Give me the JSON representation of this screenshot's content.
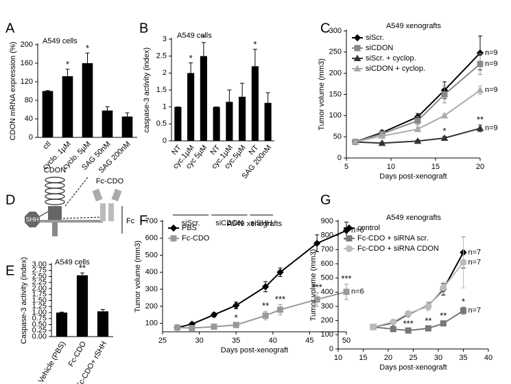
{
  "chart_data": [
    {
      "type": "bar",
      "panel": "A",
      "title": "A549 cells",
      "ylabel": "CDON mRNA expression (%)",
      "categories": [
        "ctl",
        "cyclo. 1µM",
        "cyclo. 5µM",
        "SAG 50nM",
        "SAG 200nM"
      ],
      "values": [
        100,
        132,
        160,
        58,
        45
      ],
      "errors": [
        1,
        15,
        22,
        8,
        8
      ],
      "significance": [
        null,
        "*",
        "*",
        null,
        null
      ],
      "color": "#000000",
      "ylim": [
        0,
        200
      ],
      "yticks": [
        0,
        40,
        80,
        120,
        160,
        200
      ]
    },
    {
      "type": "bar",
      "panel": "B",
      "title": "A549 cells",
      "ylabel": "caspase-3 activity (index)",
      "categories": [
        "NT",
        "cyc.1µM",
        "cyc 5µM",
        "NT",
        "cyc.1µM",
        "cyc.5µM",
        "NT",
        "SAG 200nM"
      ],
      "values": [
        1,
        2,
        2.5,
        1,
        1.15,
        1.3,
        2.2,
        1.12
      ],
      "errors": [
        0,
        0.3,
        0.4,
        0,
        0.35,
        0.4,
        0.5,
        0.3
      ],
      "significance": [
        null,
        "*",
        "*",
        null,
        null,
        null,
        "*",
        null
      ],
      "groups": [
        {
          "label": "siScr.",
          "count": 3
        },
        {
          "label": "siCDON",
          "count": 3
        },
        {
          "label": "siSHH",
          "count": 2
        }
      ],
      "color": "#000000",
      "ylim": [
        0,
        3
      ],
      "yticks": [
        0,
        0.5,
        1,
        1.5,
        2,
        2.5,
        3
      ]
    },
    {
      "type": "line",
      "panel": "C",
      "title": "A549 xenografts",
      "xlabel": "Days post-xenograft",
      "ylabel": "Tumor volume (mm3)",
      "x": [
        6,
        9,
        13,
        16,
        20
      ],
      "xlim": [
        5,
        20
      ],
      "xticks": [
        5,
        10,
        15,
        20
      ],
      "ylim": [
        0,
        300
      ],
      "yticks": [
        0,
        50,
        100,
        150,
        200,
        250,
        300
      ],
      "legend": "upper left",
      "series": [
        {
          "name": "siScr.",
          "color": "#000000",
          "marker": "diamond",
          "values": [
            38,
            60,
            97,
            160,
            248
          ],
          "errors": [
            3,
            5,
            8,
            20,
            40
          ],
          "n_label": "n=9"
        },
        {
          "name": "siCDON",
          "color": "#888888",
          "marker": "square",
          "values": [
            38,
            57,
            88,
            150,
            222
          ],
          "errors": [
            3,
            5,
            10,
            20,
            25
          ],
          "n_label": "n=9"
        },
        {
          "name": "siScr. + cyclop.",
          "color": "#333333",
          "marker": "triangle",
          "values": [
            38,
            35,
            40,
            47,
            70
          ],
          "errors": [
            3,
            3,
            3,
            4,
            8
          ],
          "n_label": "n=9"
        },
        {
          "name": "siCDON + cyclop.",
          "color": "#aaaaaa",
          "marker": "triangle",
          "values": [
            38,
            52,
            68,
            100,
            160
          ],
          "errors": [
            3,
            4,
            5,
            4,
            10
          ],
          "n_label": "n=9"
        }
      ],
      "annotations": [
        {
          "x": 16,
          "text": "*"
        },
        {
          "x": 20,
          "text": "**"
        }
      ]
    },
    {
      "type": "bar",
      "panel": "E",
      "title": "A549 cells",
      "ylabel": "Caspase-3 activity (index)",
      "categories": [
        "Vehicle (PBS)",
        "Fc-CDO",
        "Fc-CDO+ rSHH"
      ],
      "values": [
        1.0,
        2.55,
        1.05
      ],
      "errors": [
        0.02,
        0.1,
        0.08
      ],
      "significance": [
        null,
        "**",
        null
      ],
      "color": "#000000",
      "ylim": [
        0,
        3
      ],
      "yticks": [
        {
          "value": 0,
          "label": "0.00"
        },
        {
          "value": 0.25,
          "label": "0.25"
        },
        {
          "value": 0.5,
          "label": "0.50"
        },
        {
          "value": 0.75,
          "label": "0.75"
        },
        {
          "value": 1,
          "label": "1.00"
        },
        {
          "value": 1.25,
          "label": "1.25"
        },
        {
          "value": 1.5,
          "label": "1.50"
        },
        {
          "value": 1.75,
          "label": "1.75"
        },
        {
          "value": 2,
          "label": "2.00"
        },
        {
          "value": 2.25,
          "label": "2.25"
        },
        {
          "value": 2.5,
          "label": "2.50"
        },
        {
          "value": 2.75,
          "label": "2.75"
        },
        {
          "value": 3,
          "label": "3.00"
        }
      ]
    },
    {
      "type": "line",
      "panel": "F",
      "title": "A549 xenografts",
      "xlabel": "Days post-xenograft",
      "ylabel": "Tumor volume (mm3)",
      "x": [
        27,
        29,
        32,
        35,
        39,
        41,
        46,
        50
      ],
      "xlim": [
        25,
        50
      ],
      "xticks": [
        25,
        30,
        35,
        40,
        45,
        50
      ],
      "ylim": [
        50,
        700
      ],
      "yticks": [
        100,
        200,
        300,
        400,
        500,
        600,
        700
      ],
      "legend": "upper left",
      "series": [
        {
          "name": "PBS",
          "color": "#000000",
          "marker": "diamond",
          "values": [
            75,
            95,
            150,
            205,
            315,
            400,
            570,
            645
          ],
          "errors": [
            8,
            10,
            12,
            20,
            30,
            25,
            50,
            50
          ],
          "n_label": "n=6"
        },
        {
          "name": "Fc-CDO",
          "color": "#999999",
          "marker": "square",
          "values": [
            75,
            72,
            80,
            90,
            145,
            180,
            240,
            285
          ],
          "errors": [
            8,
            8,
            8,
            10,
            25,
            30,
            40,
            45
          ],
          "n_label": "n=6"
        }
      ],
      "annotations": [
        {
          "x": 35,
          "text": "*"
        },
        {
          "x": 39,
          "text": "**"
        },
        {
          "x": 41,
          "text": "***"
        },
        {
          "x": 46,
          "text": "***"
        },
        {
          "x": 50,
          "text": "***"
        }
      ]
    },
    {
      "type": "line",
      "panel": "G",
      "title": "A549 xenografts",
      "xlabel": "Days post-xenograft",
      "ylabel": "Tumor volume (mm3)",
      "x": [
        17,
        21,
        24,
        28,
        31,
        35
      ],
      "xlim": [
        10,
        40
      ],
      "xticks": [
        10,
        15,
        20,
        25,
        30,
        35,
        40
      ],
      "ylim": [
        0,
        900
      ],
      "yticks": [
        0,
        100,
        200,
        300,
        400,
        500,
        600,
        700,
        800,
        900
      ],
      "legend": "upper left",
      "series": [
        {
          "name": "control",
          "color": "#000000",
          "marker": "diamond",
          "values": [
            155,
            185,
            245,
            305,
            420,
            680
          ],
          "errors": [
            10,
            10,
            15,
            25,
            40,
            110
          ],
          "n_label": "n=7"
        },
        {
          "name": "Fc-CDO + siRNA scr.",
          "color": "#777777",
          "marker": "square",
          "values": [
            155,
            140,
            130,
            145,
            180,
            270
          ],
          "errors": [
            10,
            10,
            10,
            15,
            15,
            25
          ],
          "n_label": "n=7"
        },
        {
          "name": "Fc-CDO + siRNA CDON",
          "color": "#bbbbbb",
          "marker": "circle",
          "values": [
            155,
            190,
            250,
            300,
            430,
            610
          ],
          "errors": [
            10,
            10,
            15,
            30,
            40,
            180
          ],
          "n_label": "n=7"
        }
      ],
      "annotations": [
        {
          "x": 24,
          "text": "***"
        },
        {
          "x": 28,
          "text": "**"
        },
        {
          "x": 31,
          "text": "**"
        },
        {
          "x": 35,
          "text": "*"
        }
      ]
    }
  ],
  "diagram": {
    "panel": "D",
    "receptor": "CDON",
    "ligand": "SHH",
    "construct": "Fc-CDO",
    "fragment": "Fc"
  }
}
